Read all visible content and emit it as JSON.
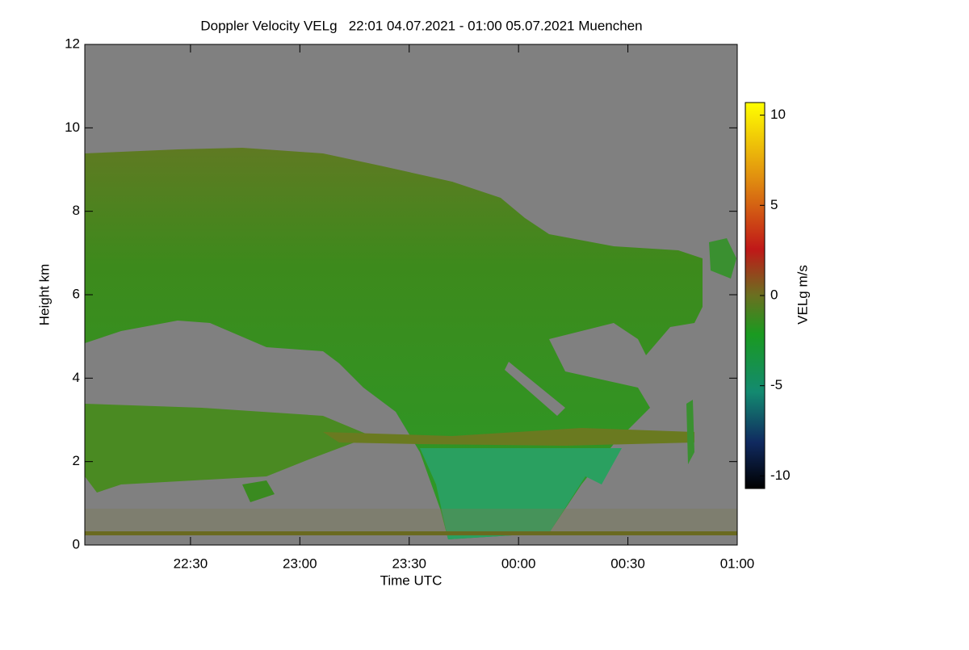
{
  "chart_data": {
    "type": "heatmap",
    "title": "Doppler Velocity VELg   22:01 04.07.2021 - 01:00 05.07.2021 Muenchen",
    "xlabel": "Time UTC",
    "ylabel": "Height km",
    "colorbar_label": "VELg m/s",
    "xlim": [
      1,
      180
    ],
    "xticks": [
      {
        "value": 30,
        "label": "22:30"
      },
      {
        "value": 60,
        "label": "23:00"
      },
      {
        "value": 90,
        "label": "23:30"
      },
      {
        "value": 120,
        "label": "00:00"
      },
      {
        "value": 150,
        "label": "00:30"
      },
      {
        "value": 180,
        "label": "01:00"
      }
    ],
    "ylim": [
      0,
      12
    ],
    "yticks": [
      0,
      2,
      4,
      6,
      8,
      10,
      12
    ],
    "clim": [
      -10.7,
      10.7
    ],
    "cticks": [
      -10,
      -5,
      0,
      5,
      10
    ]
  }
}
